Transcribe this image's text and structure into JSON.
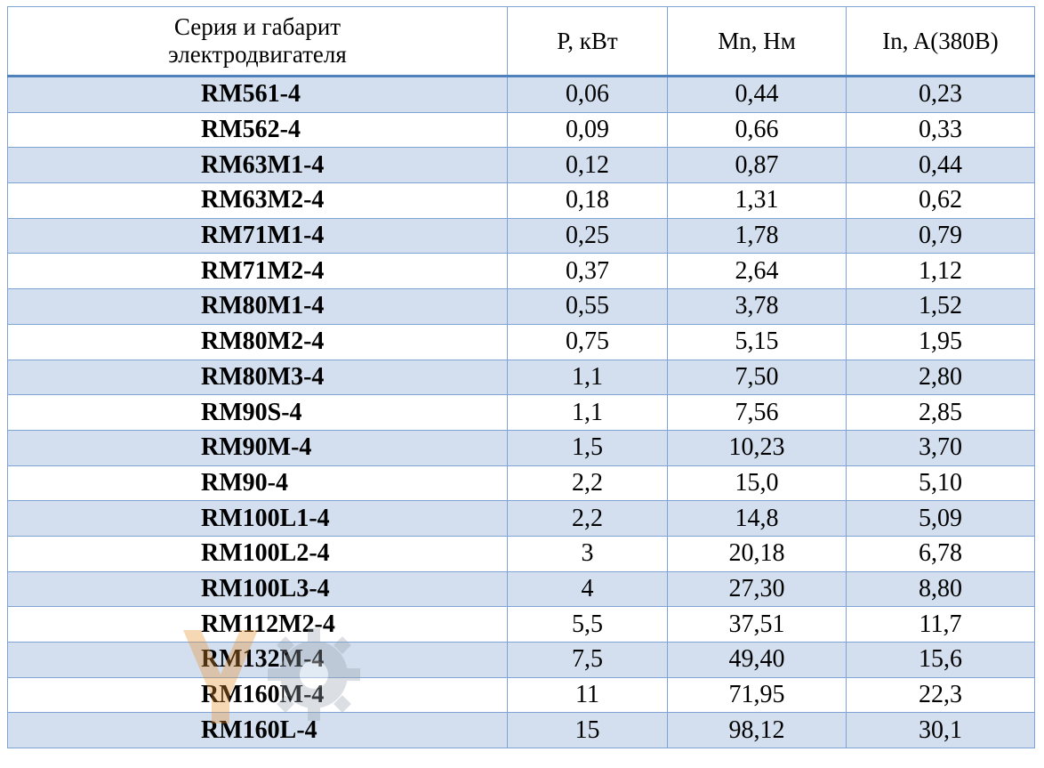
{
  "table": {
    "headers": {
      "series_line1": "Серия и габарит",
      "series_line2": "электродвигателя",
      "power": "P, кВт",
      "torque": "Mn, Нм",
      "current": "In, A(380B)"
    },
    "rows": [
      {
        "model": "RM561-4",
        "power": "0,06",
        "torque": "0,44",
        "current": "0,23"
      },
      {
        "model": "RM562-4",
        "power": "0,09",
        "torque": "0,66",
        "current": "0,33"
      },
      {
        "model": "RM63M1-4",
        "power": "0,12",
        "torque": "0,87",
        "current": "0,44"
      },
      {
        "model": "RM63M2-4",
        "power": "0,18",
        "torque": "1,31",
        "current": "0,62"
      },
      {
        "model": "RM71M1-4",
        "power": "0,25",
        "torque": "1,78",
        "current": "0,79"
      },
      {
        "model": "RM71M2-4",
        "power": "0,37",
        "torque": "2,64",
        "current": "1,12"
      },
      {
        "model": "RM80M1-4",
        "power": "0,55",
        "torque": "3,78",
        "current": "1,52"
      },
      {
        "model": "RM80M2-4",
        "power": "0,75",
        "torque": "5,15",
        "current": "1,95"
      },
      {
        "model": "RM80M3-4",
        "power": "1,1",
        "torque": "7,50",
        "current": "2,80"
      },
      {
        "model": "RM90S-4",
        "power": "1,1",
        "torque": "7,56",
        "current": "2,85"
      },
      {
        "model": "RM90M-4",
        "power": "1,5",
        "torque": "10,23",
        "current": "3,70"
      },
      {
        "model": "RM90-4",
        "power": "2,2",
        "torque": "15,0",
        "current": "5,10"
      },
      {
        "model": "RM100L1-4",
        "power": "2,2",
        "torque": "14,8",
        "current": "5,09"
      },
      {
        "model": "RM100L2-4",
        "power": "3",
        "torque": "20,18",
        "current": "6,78"
      },
      {
        "model": "RM100L3-4",
        "power": "4",
        "torque": "27,30",
        "current": "8,80"
      },
      {
        "model": "RM112M2-4",
        "power": "5,5",
        "torque": "37,51",
        "current": "11,7"
      },
      {
        "model": "RM132M-4",
        "power": "7,5",
        "torque": "49,40",
        "current": "15,6"
      },
      {
        "model": "RM160M-4",
        "power": "11",
        "torque": "71,95",
        "current": "22,3"
      },
      {
        "model": "RM160L-4",
        "power": "15",
        "torque": "98,12",
        "current": "30,1"
      }
    ]
  },
  "colors": {
    "row_shade": "#d3dfee",
    "border": "#7fa3d4",
    "header_rule": "#4f81bd",
    "watermark": "#e8912f"
  },
  "watermark": {
    "icon": "gear-logo-icon"
  }
}
